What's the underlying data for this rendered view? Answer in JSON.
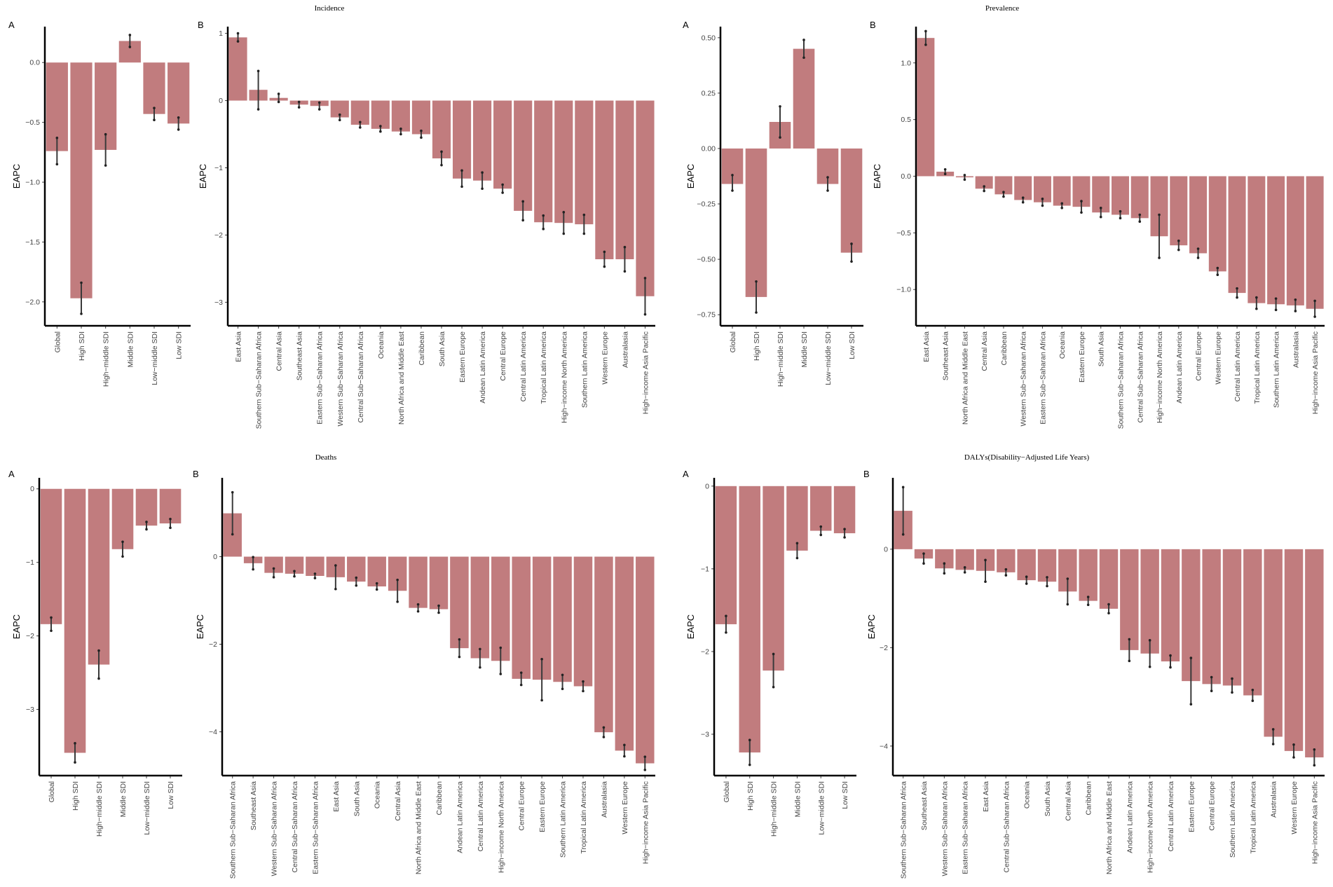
{
  "chart_data": [
    {
      "id": "incidence-sdi",
      "type": "bar",
      "panel": "A",
      "title": "",
      "ylabel": "EAPC",
      "ylim": [
        -2.2,
        0.3
      ],
      "yticks": [
        -2.0,
        -1.5,
        -1.0,
        -0.5,
        0.0
      ],
      "tick_decimals": 1,
      "categories": [
        "Global",
        "High SDI",
        "High−middle SDI",
        "Middle SDI",
        "Low−middle SDI",
        "Low SDI"
      ],
      "values": [
        -0.74,
        -1.97,
        -0.73,
        0.18,
        -0.43,
        -0.51
      ],
      "lower": [
        -0.85,
        -2.1,
        -0.86,
        0.13,
        -0.48,
        -0.56
      ],
      "upper": [
        -0.63,
        -1.84,
        -0.6,
        0.23,
        -0.38,
        -0.46
      ]
    },
    {
      "id": "incidence-region",
      "type": "bar",
      "panel": "B",
      "title": "Incidence",
      "ylabel": "EAPC",
      "ylim": [
        -3.35,
        1.1
      ],
      "yticks": [
        -3,
        -2,
        -1,
        0,
        1
      ],
      "tick_decimals": 0,
      "categories": [
        "East Asia",
        "Southern Sub−Saharan Africa",
        "Central Asia",
        "Southeast Asia",
        "Eastern Sub−Saharan Africa",
        "Western Sub−Saharan Africa",
        "Central Sub−Saharan Africa",
        "Oceania",
        "North Africa and Middle East",
        "Caribbean",
        "South Asia",
        "Eastern Europe",
        "Andean Latin America",
        "Central Europe",
        "Central Latin America",
        "Tropical Latin America",
        "High−income North America",
        "Southern Latin America",
        "Western Europe",
        "Australasia",
        "High−income Asia Pacific"
      ],
      "values": [
        0.94,
        0.16,
        0.04,
        -0.06,
        -0.08,
        -0.25,
        -0.36,
        -0.42,
        -0.46,
        -0.5,
        -0.86,
        -1.16,
        -1.19,
        -1.31,
        -1.64,
        -1.81,
        -1.82,
        -1.84,
        -2.36,
        -2.36,
        -2.91
      ],
      "lower": [
        0.88,
        -0.13,
        -0.02,
        -0.1,
        -0.13,
        -0.29,
        -0.4,
        -0.46,
        -0.5,
        -0.55,
        -0.96,
        -1.28,
        -1.31,
        -1.37,
        -1.78,
        -1.91,
        -1.98,
        -1.98,
        -2.47,
        -2.54,
        -3.18
      ],
      "upper": [
        1.0,
        0.44,
        0.1,
        -0.02,
        -0.03,
        -0.21,
        -0.32,
        -0.38,
        -0.42,
        -0.45,
        -0.76,
        -1.04,
        -1.07,
        -1.25,
        -1.5,
        -1.71,
        -1.66,
        -1.7,
        -2.25,
        -2.18,
        -2.64
      ]
    },
    {
      "id": "prevalence-sdi",
      "type": "bar",
      "panel": "A",
      "title": "",
      "ylabel": "EAPC",
      "ylim": [
        -0.8,
        0.55
      ],
      "yticks": [
        -0.75,
        -0.5,
        -0.25,
        0.0,
        0.25,
        0.5
      ],
      "tick_decimals": 2,
      "categories": [
        "Global",
        "High SDI",
        "High−middle SDI",
        "Middle SDI",
        "Low−middle SDI",
        "Low SDI"
      ],
      "values": [
        -0.16,
        -0.67,
        0.12,
        0.45,
        -0.16,
        -0.47
      ],
      "lower": [
        -0.19,
        -0.74,
        0.05,
        0.41,
        -0.19,
        -0.51
      ],
      "upper": [
        -0.12,
        -0.6,
        0.19,
        0.49,
        -0.13,
        -0.43
      ]
    },
    {
      "id": "prevalence-region",
      "type": "bar",
      "panel": "B",
      "title": "Prevalence",
      "ylabel": "EAPC",
      "ylim": [
        -1.32,
        1.32
      ],
      "yticks": [
        -1.0,
        -0.5,
        0.0,
        0.5,
        1.0
      ],
      "tick_decimals": 1,
      "categories": [
        "East Asia",
        "Southeast Asia",
        "North Africa and Middle East",
        "Central Asia",
        "Caribbean",
        "Western Sub−Saharan Africa",
        "Eastern Sub−Saharan Africa",
        "Oceania",
        "Eastern Europe",
        "South Asia",
        "Southern Sub−Saharan Africa",
        "Central Sub−Saharan Africa",
        "High−income North America",
        "Andean Latin America",
        "Central Europe",
        "Western Europe",
        "Central Latin America",
        "Tropical Latin America",
        "Southern Latin America",
        "Australasia",
        "High−income Asia Pacific"
      ],
      "values": [
        1.22,
        0.04,
        -0.01,
        -0.11,
        -0.16,
        -0.21,
        -0.23,
        -0.26,
        -0.27,
        -0.32,
        -0.34,
        -0.37,
        -0.53,
        -0.61,
        -0.68,
        -0.84,
        -1.03,
        -1.12,
        -1.13,
        -1.14,
        -1.17
      ],
      "lower": [
        1.16,
        0.02,
        -0.03,
        -0.13,
        -0.18,
        -0.23,
        -0.26,
        -0.28,
        -0.32,
        -0.36,
        -0.37,
        -0.4,
        -0.72,
        -0.65,
        -0.72,
        -0.87,
        -1.07,
        -1.17,
        -1.18,
        -1.19,
        -1.24
      ],
      "upper": [
        1.28,
        0.06,
        0.01,
        -0.09,
        -0.14,
        -0.19,
        -0.2,
        -0.24,
        -0.22,
        -0.28,
        -0.31,
        -0.34,
        -0.34,
        -0.57,
        -0.64,
        -0.81,
        -0.99,
        -1.07,
        -1.08,
        -1.09,
        -1.1
      ]
    },
    {
      "id": "deaths-sdi",
      "type": "bar",
      "panel": "A",
      "title": "",
      "ylabel": "EAPC",
      "ylim": [
        -3.9,
        0.15
      ],
      "yticks": [
        -3,
        -2,
        -1,
        0
      ],
      "tick_decimals": 0,
      "categories": [
        "Global",
        "High SDI",
        "High−middle SDI",
        "Middle SDI",
        "Low−middle SDI",
        "Low SDI"
      ],
      "values": [
        -1.84,
        -3.59,
        -2.39,
        -0.82,
        -0.5,
        -0.47
      ],
      "lower": [
        -1.93,
        -3.72,
        -2.58,
        -0.92,
        -0.55,
        -0.53
      ],
      "upper": [
        -1.75,
        -3.46,
        -2.2,
        -0.72,
        -0.45,
        -0.41
      ]
    },
    {
      "id": "deaths-region",
      "type": "bar",
      "panel": "B",
      "title": "Deaths",
      "ylabel": "EAPC",
      "ylim": [
        -5.0,
        1.8
      ],
      "yticks": [
        -4,
        -2,
        0
      ],
      "tick_decimals": 0,
      "categories": [
        "Southern Sub−Saharan Africa",
        "Southeast Asia",
        "Western Sub−Saharan Africa",
        "Central Sub−Saharan Africa",
        "Eastern Sub−Saharan Africa",
        "East Asia",
        "South Asia",
        "Oceania",
        "Central Asia",
        "North Africa and Middle East",
        "Caribbean",
        "Andean Latin America",
        "Central Latin America",
        "High−income North America",
        "Central Europe",
        "Eastern Europe",
        "Southern Latin America",
        "Tropical Latin America",
        "Australasia",
        "Western Europe",
        "High−income Asia Pacific"
      ],
      "values": [
        0.99,
        -0.15,
        -0.37,
        -0.39,
        -0.44,
        -0.47,
        -0.57,
        -0.68,
        -0.78,
        -1.17,
        -1.2,
        -2.09,
        -2.32,
        -2.38,
        -2.79,
        -2.81,
        -2.86,
        -2.96,
        -4.01,
        -4.43,
        -4.72
      ],
      "lower": [
        0.51,
        -0.29,
        -0.47,
        -0.45,
        -0.49,
        -0.74,
        -0.66,
        -0.75,
        -1.03,
        -1.25,
        -1.28,
        -2.29,
        -2.53,
        -2.68,
        -2.93,
        -3.28,
        -3.02,
        -3.07,
        -4.12,
        -4.56,
        -4.87
      ],
      "upper": [
        1.47,
        -0.01,
        -0.27,
        -0.33,
        -0.39,
        -0.2,
        -0.48,
        -0.61,
        -0.53,
        -1.09,
        -1.12,
        -1.89,
        -2.11,
        -2.08,
        -2.65,
        -2.34,
        -2.7,
        -2.85,
        -3.9,
        -4.3,
        -4.57
      ]
    },
    {
      "id": "dalys-sdi",
      "type": "bar",
      "panel": "A",
      "title": "",
      "ylabel": "EAPC",
      "ylim": [
        -3.5,
        0.1
      ],
      "yticks": [
        -3,
        -2,
        -1,
        0
      ],
      "tick_decimals": 0,
      "categories": [
        "Global",
        "High SDI",
        "High−middle SDI",
        "Middle SDI",
        "Low−middle SDI",
        "Low SDI"
      ],
      "values": [
        -1.67,
        -3.22,
        -2.23,
        -0.78,
        -0.54,
        -0.57
      ],
      "lower": [
        -1.77,
        -3.37,
        -2.43,
        -0.87,
        -0.59,
        -0.62
      ],
      "upper": [
        -1.57,
        -3.07,
        -2.03,
        -0.69,
        -0.49,
        -0.52
      ]
    },
    {
      "id": "dalys-region",
      "type": "bar",
      "panel": "B",
      "title": "DALYs(Disability−Adjusted Life Years)",
      "ylabel": "EAPC",
      "ylim": [
        -4.6,
        1.45
      ],
      "yticks": [
        -4,
        -2,
        0
      ],
      "tick_decimals": 0,
      "categories": [
        "Southern Sub−Saharan Africa",
        "Southeast Asia",
        "Western Sub−Saharan Africa",
        "Eastern Sub−Saharan Africa",
        "East Asia",
        "Central Sub−Saharan Africa",
        "Oceania",
        "South Asia",
        "Central Asia",
        "Caribbean",
        "North Africa and Middle East",
        "Andean Latin America",
        "High−income North America",
        "Central Latin America",
        "Eastern Europe",
        "Central Europe",
        "Southern Latin America",
        "Tropical Latin America",
        "Australasia",
        "Western Europe",
        "High−income Asia Pacific"
      ],
      "values": [
        0.78,
        -0.19,
        -0.39,
        -0.42,
        -0.44,
        -0.47,
        -0.63,
        -0.66,
        -0.86,
        -1.05,
        -1.21,
        -2.05,
        -2.12,
        -2.28,
        -2.68,
        -2.74,
        -2.77,
        -2.97,
        -3.81,
        -4.1,
        -4.23
      ],
      "lower": [
        0.3,
        -0.29,
        -0.49,
        -0.47,
        -0.66,
        -0.53,
        -0.7,
        -0.75,
        -1.12,
        -1.13,
        -1.3,
        -2.27,
        -2.39,
        -2.4,
        -3.15,
        -2.88,
        -2.91,
        -3.08,
        -3.96,
        -4.23,
        -4.39
      ],
      "upper": [
        1.26,
        -0.09,
        -0.29,
        -0.37,
        -0.22,
        -0.41,
        -0.56,
        -0.57,
        -0.6,
        -0.97,
        -1.12,
        -1.83,
        -1.85,
        -2.16,
        -2.21,
        -2.6,
        -2.63,
        -2.86,
        -3.66,
        -3.97,
        -4.07
      ]
    }
  ]
}
